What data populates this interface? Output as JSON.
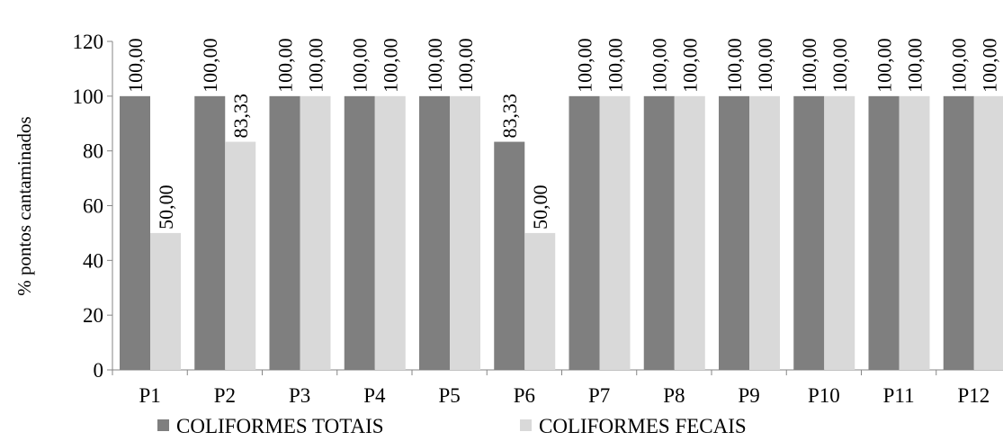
{
  "chart_data": {
    "type": "bar",
    "ylabel": "% pontos cantaminados",
    "xlabel": "",
    "title": "",
    "ylim": [
      0,
      120
    ],
    "yticks": [
      0,
      20,
      40,
      60,
      80,
      100,
      120
    ],
    "categories": [
      "P1",
      "P2",
      "P3",
      "P4",
      "P5",
      "P6",
      "P7",
      "P8",
      "P9",
      "P10",
      "P11",
      "P12"
    ],
    "series": [
      {
        "name": "COLIFORMES TOTAIS",
        "color": "#7f7f7f",
        "values": [
          100,
          100,
          100,
          100,
          100,
          83.33,
          100,
          100,
          100,
          100,
          100,
          100
        ],
        "labels": [
          "100,00",
          "100,00",
          "100,00",
          "100,00",
          "100,00",
          "83,33",
          "100,00",
          "100,00",
          "100,00",
          "100,00",
          "100,00",
          "100,00"
        ]
      },
      {
        "name": "COLIFORMES FECAIS",
        "color": "#d9d9d9",
        "values": [
          50,
          83.33,
          100,
          100,
          100,
          50,
          100,
          100,
          100,
          100,
          100,
          100
        ],
        "labels": [
          "50,00",
          "83,33",
          "100,00",
          "100,00",
          "100,00",
          "50,00",
          "100,00",
          "100,00",
          "100,00",
          "100,00",
          "100,00",
          "100,00"
        ]
      }
    ],
    "legend": "bottom",
    "grid": false
  }
}
